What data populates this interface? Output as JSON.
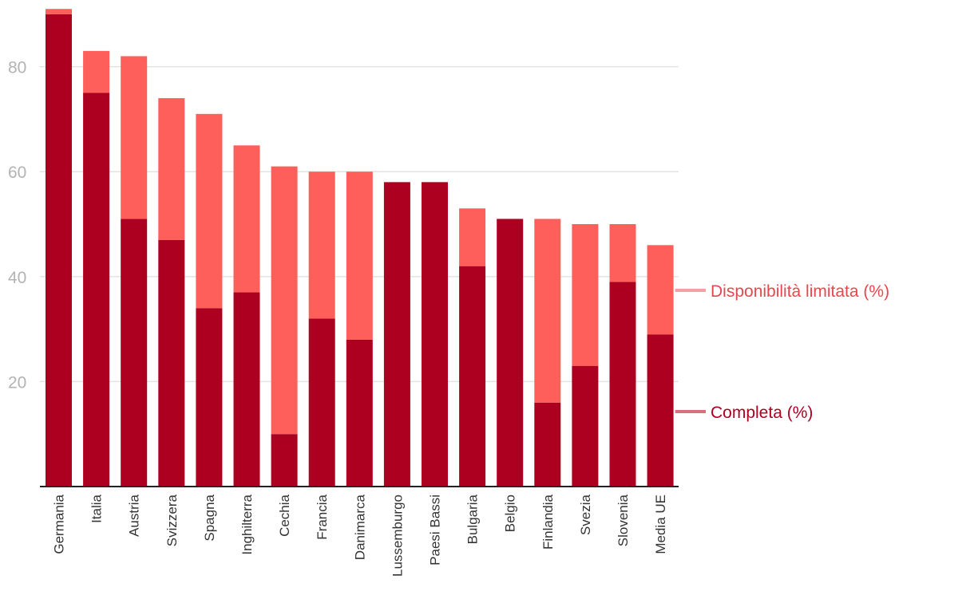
{
  "chart_data": {
    "type": "bar",
    "stacked": true,
    "title": "",
    "xlabel": "",
    "ylabel": "",
    "ylim": [
      0,
      90
    ],
    "yticks": [
      20,
      40,
      60,
      80
    ],
    "grid": true,
    "categories": [
      "Germania",
      "Italia",
      "Austria",
      "Svizzera",
      "Spagna",
      "Inghilterra",
      "Cechia",
      "Francia",
      "Danimarca",
      "Lussemburgo",
      "Paesi Bassi",
      "Bulgaria",
      "Belgio",
      "Finlandia",
      "Svezia",
      "Slovenia",
      "Media UE"
    ],
    "series": [
      {
        "name": "Completa (%)",
        "color": "#ad0020",
        "values": [
          90,
          75,
          51,
          47,
          34,
          37,
          10,
          32,
          28,
          58,
          58,
          42,
          51,
          16,
          23,
          39,
          29
        ]
      },
      {
        "name": "Disponibilità limitata (%)",
        "color": "#ff5f5a",
        "values": [
          1,
          8,
          31,
          27,
          37,
          28,
          51,
          28,
          32,
          0,
          0,
          11,
          0,
          35,
          27,
          11,
          17
        ]
      }
    ],
    "legend": {
      "position": "right",
      "items": [
        {
          "label": "Disponibilità limitata (%)",
          "color": "#e5484d",
          "line_color": "#f4a0a4"
        },
        {
          "label": "Completa (%)",
          "color": "#ad0020",
          "line_color": "#d6707f"
        }
      ]
    }
  }
}
